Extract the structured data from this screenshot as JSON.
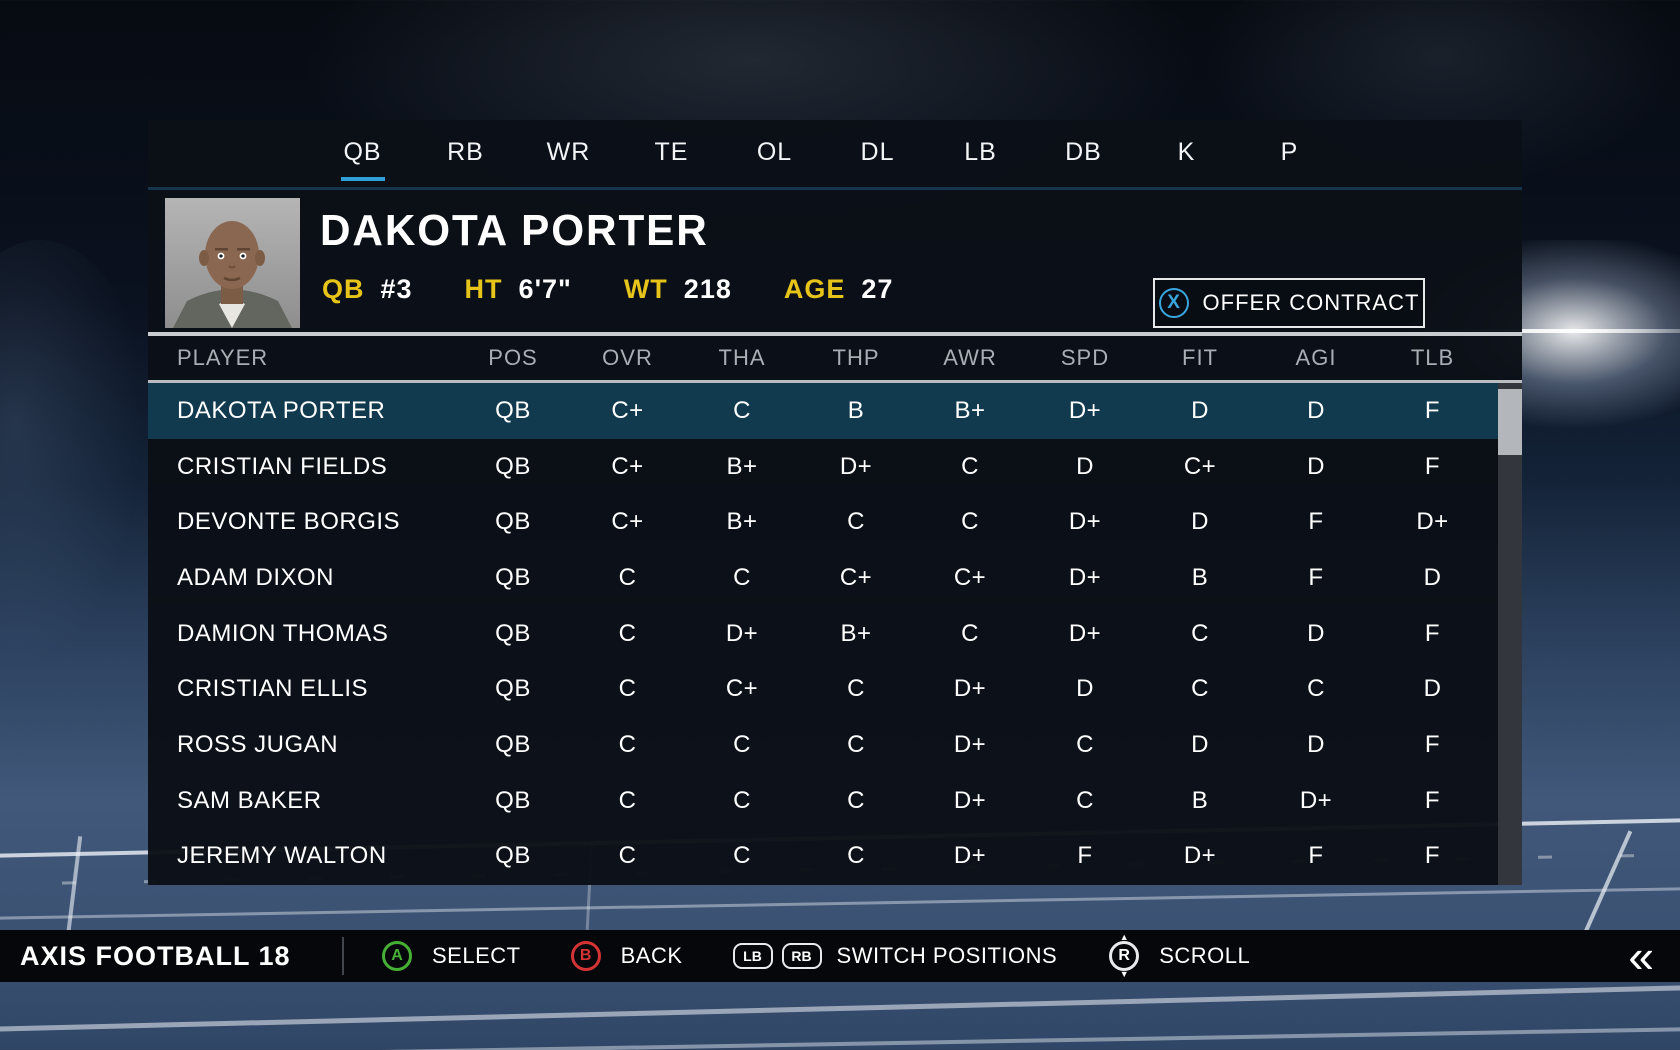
{
  "tabs": {
    "items": [
      {
        "label": "QB",
        "active": true
      },
      {
        "label": "RB"
      },
      {
        "label": "WR"
      },
      {
        "label": "TE"
      },
      {
        "label": "OL"
      },
      {
        "label": "DL"
      },
      {
        "label": "LB"
      },
      {
        "label": "DB"
      },
      {
        "label": "K"
      },
      {
        "label": "P"
      }
    ]
  },
  "player_card": {
    "name": "DAKOTA PORTER",
    "position_label": "QB",
    "number": "#3",
    "ht_label": "HT",
    "ht_value": "6'7\"",
    "wt_label": "WT",
    "wt_value": "218",
    "age_label": "AGE",
    "age_value": "27",
    "offer_button": {
      "icon_letter": "X",
      "label": "OFFER CONTRACT"
    }
  },
  "roster_table": {
    "columns": [
      "PLAYER",
      "POS",
      "OVR",
      "THA",
      "THP",
      "AWR",
      "SPD",
      "FIT",
      "AGI",
      "TLB"
    ],
    "rows": [
      {
        "player": "DAKOTA PORTER",
        "pos": "QB",
        "ovr": "C+",
        "tha": "C",
        "thp": "B",
        "awr": "B+",
        "spd": "D+",
        "fit": "D",
        "agi": "D",
        "tlb": "F",
        "selected": true
      },
      {
        "player": "CRISTIAN FIELDS",
        "pos": "QB",
        "ovr": "C+",
        "tha": "B+",
        "thp": "D+",
        "awr": "C",
        "spd": "D",
        "fit": "C+",
        "agi": "D",
        "tlb": "F"
      },
      {
        "player": "DEVONTE BORGIS",
        "pos": "QB",
        "ovr": "C+",
        "tha": "B+",
        "thp": "C",
        "awr": "C",
        "spd": "D+",
        "fit": "D",
        "agi": "F",
        "tlb": "D+"
      },
      {
        "player": "ADAM DIXON",
        "pos": "QB",
        "ovr": "C",
        "tha": "C",
        "thp": "C+",
        "awr": "C+",
        "spd": "D+",
        "fit": "B",
        "agi": "F",
        "tlb": "D"
      },
      {
        "player": "DAMION THOMAS",
        "pos": "QB",
        "ovr": "C",
        "tha": "D+",
        "thp": "B+",
        "awr": "C",
        "spd": "D+",
        "fit": "C",
        "agi": "D",
        "tlb": "F"
      },
      {
        "player": "CRISTIAN ELLIS",
        "pos": "QB",
        "ovr": "C",
        "tha": "C+",
        "thp": "C",
        "awr": "D+",
        "spd": "D",
        "fit": "C",
        "agi": "C",
        "tlb": "D"
      },
      {
        "player": "ROSS JUGAN",
        "pos": "QB",
        "ovr": "C",
        "tha": "C",
        "thp": "C",
        "awr": "D+",
        "spd": "C",
        "fit": "D",
        "agi": "D",
        "tlb": "F"
      },
      {
        "player": "SAM BAKER",
        "pos": "QB",
        "ovr": "C",
        "tha": "C",
        "thp": "C",
        "awr": "D+",
        "spd": "C",
        "fit": "B",
        "agi": "D+",
        "tlb": "F"
      },
      {
        "player": "JEREMY WALTON",
        "pos": "QB",
        "ovr": "C",
        "tha": "C",
        "thp": "C",
        "awr": "D+",
        "spd": "F",
        "fit": "D+",
        "agi": "F",
        "tlb": "F"
      }
    ]
  },
  "bottom_bar": {
    "title": "AXIS FOOTBALL 18",
    "hints": [
      {
        "button": "A",
        "label": "SELECT"
      },
      {
        "button": "B",
        "label": "BACK"
      },
      {
        "buttons": [
          "LB",
          "RB"
        ],
        "label": "SWITCH POSITIONS"
      },
      {
        "button": "R",
        "label": "SCROLL"
      }
    ],
    "collapse_icon": "«"
  },
  "colors": {
    "accent_blue": "#2f9fd8",
    "label_yellow": "#e7c41a",
    "selected_row": "#123a4f",
    "button_green": "#46b035",
    "button_red": "#d43434",
    "panel_bg": "#0b1017"
  }
}
